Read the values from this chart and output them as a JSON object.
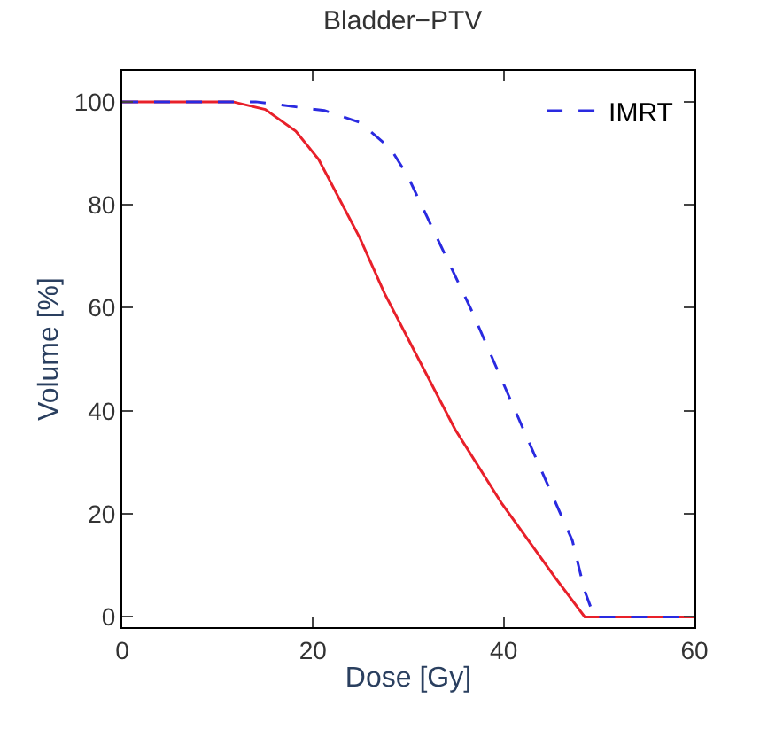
{
  "chart_data": {
    "type": "line",
    "title": "Bladder−PTV",
    "xlabel": "Dose [Gy]",
    "ylabel": "Volume [%]",
    "xlim": [
      0,
      60
    ],
    "ylim": [
      -2,
      106
    ],
    "xticks": [
      0,
      20,
      40,
      60
    ],
    "yticks": [
      0,
      20,
      40,
      60,
      80,
      100
    ],
    "legend": "top right",
    "series": [
      {
        "color": "#e8202a",
        "line_style": "solid",
        "x": [
          0,
          11.6,
          15,
          18.2,
          20.6,
          24.9,
          27.5,
          31.2,
          34.9,
          39.8,
          45.4,
          48.5,
          60
        ],
        "values": [
          100,
          100,
          98.5,
          94.3,
          88.8,
          73.6,
          62.8,
          49.6,
          36.4,
          22,
          7.6,
          0,
          0
        ]
      },
      {
        "name": "IMRT",
        "color": "#2a2ae0",
        "line_style": "dashed",
        "x": [
          0,
          14,
          21.2,
          24.9,
          28.1,
          29.9,
          33,
          36.7,
          39.8,
          43.5,
          47.2,
          48.5,
          49.5,
          60
        ],
        "values": [
          100,
          100,
          98.3,
          96,
          91,
          85.7,
          73.6,
          59.2,
          46,
          30.3,
          14.8,
          5,
          0,
          0
        ]
      }
    ]
  }
}
